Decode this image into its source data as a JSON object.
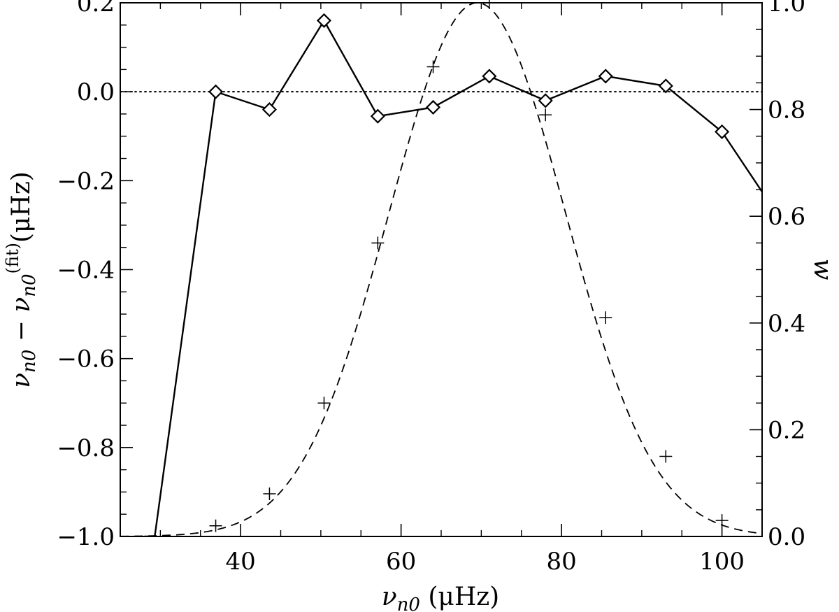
{
  "chart_data": {
    "type": "line",
    "title": "",
    "xlabel": {
      "main": "ν",
      "sub": "n0",
      "units": " (μHz)"
    },
    "ylabel": {
      "a": "ν",
      "a_sub": "n0",
      "minus": " − ",
      "b": "ν",
      "b_sub": "n0",
      "b_sup": "(fit)",
      "units": "(μHz)"
    },
    "y2label": "w",
    "xlim": [
      25,
      105
    ],
    "ylim": [
      -1.0,
      0.2
    ],
    "y2lim": [
      0.0,
      1.0
    ],
    "x_ticks": [
      40,
      60,
      80,
      100
    ],
    "x_tick_labels": [
      "40",
      "60",
      "80",
      "100"
    ],
    "y_ticks": [
      -1.0,
      -0.8,
      -0.6,
      -0.4,
      -0.2,
      0.0,
      0.2
    ],
    "y_tick_labels": [
      "−1.0",
      "−0.8",
      "−0.6",
      "−0.4",
      "−0.2",
      "0.0",
      "0.2"
    ],
    "y2_ticks": [
      0.0,
      0.2,
      0.4,
      0.6,
      0.8,
      1.0
    ],
    "y2_tick_labels": [
      "0.0",
      "0.2",
      "0.4",
      "0.6",
      "0.8",
      "1.0"
    ],
    "grid": false,
    "reference_line": {
      "y": 0.0,
      "style": "dotted"
    },
    "series": [
      {
        "axis": "left",
        "style": "solid",
        "marker": "diamond",
        "x": [
          28,
          29.3,
          36.9,
          43.6,
          50.4,
          57.1,
          64.0,
          71.0,
          78.0,
          85.5,
          93.0,
          100.0,
          105
        ],
        "y": [
          -1.0,
          -1.0,
          0.0,
          -0.04,
          0.16,
          -0.055,
          -0.035,
          0.035,
          -0.02,
          0.035,
          0.013,
          -0.09,
          -0.225
        ],
        "marker_x": [
          36.9,
          43.6,
          50.4,
          57.1,
          64.0,
          71.0,
          78.0,
          85.5,
          93.0,
          100.0
        ],
        "marker_y": [
          0.0,
          -0.04,
          0.16,
          -0.055,
          -0.035,
          0.035,
          -0.02,
          0.035,
          0.013,
          -0.09
        ]
      },
      {
        "axis": "right",
        "style": "dashed",
        "marker": "none",
        "curve": "gaussian",
        "center": 69.5,
        "sigma": 11.0,
        "amplitude": 1.0,
        "x_range": [
          25,
          105
        ]
      },
      {
        "axis": "right",
        "style": "none",
        "marker": "plus",
        "x": [
          36.9,
          43.6,
          50.4,
          57.1,
          64.0,
          71.0,
          78.0,
          85.5,
          93.0,
          100.0
        ],
        "y": [
          0.02,
          0.08,
          0.25,
          0.55,
          0.88,
          1.0,
          0.79,
          0.41,
          0.15,
          0.03
        ]
      }
    ]
  }
}
